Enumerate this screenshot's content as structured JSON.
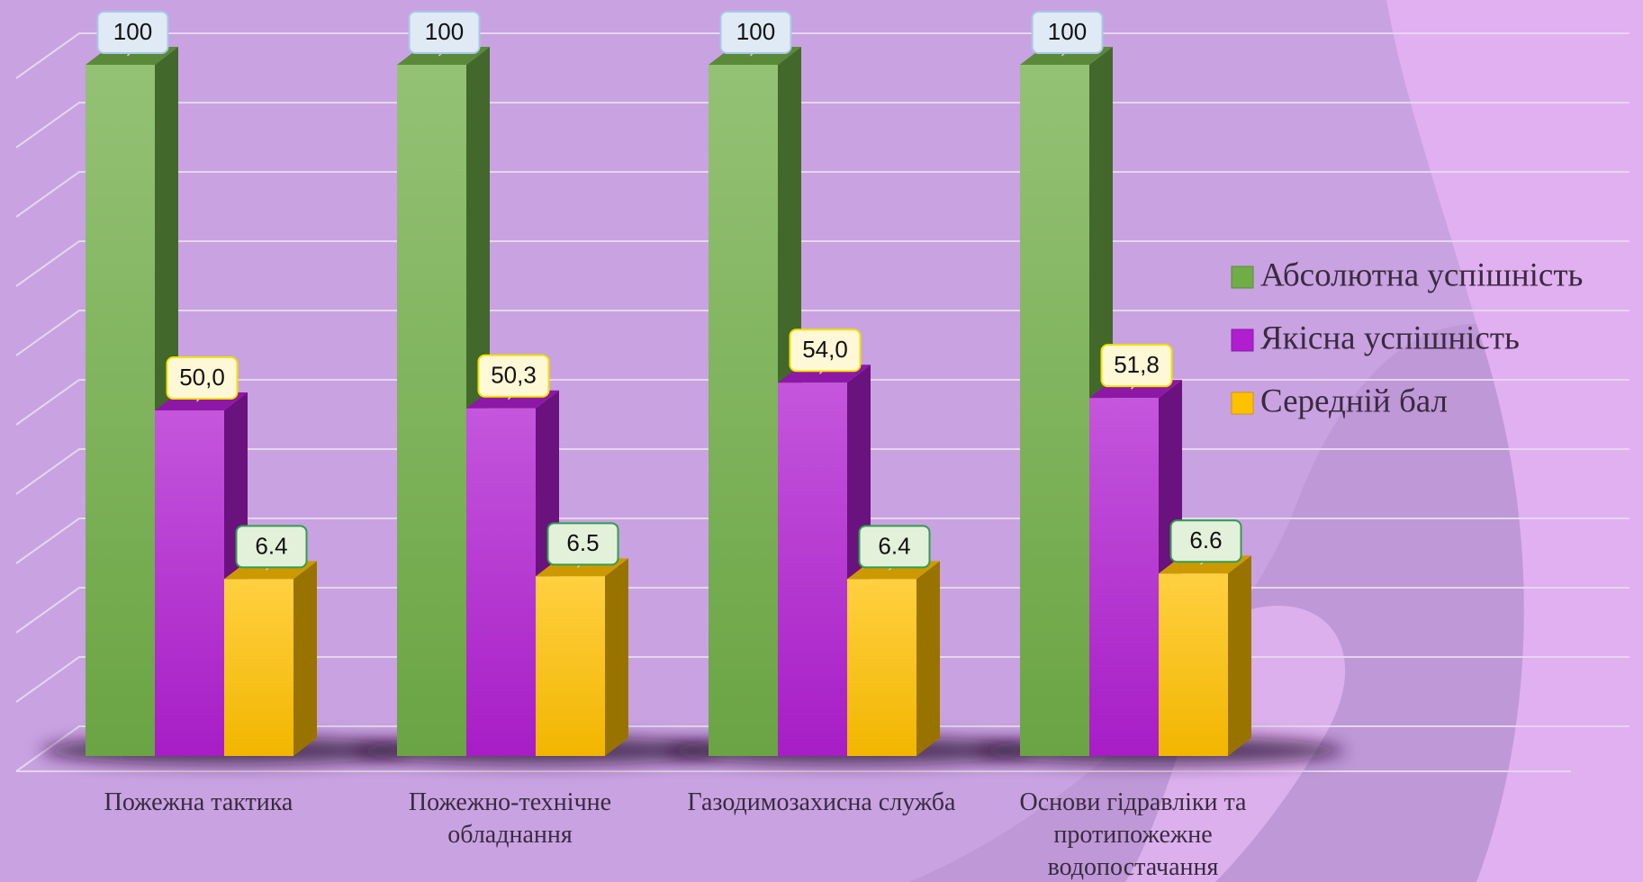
{
  "chart_data": {
    "type": "bar3d",
    "categories": [
      "Пожежна тактика",
      "Пожежно-технічне обладнання",
      "Газодимозахисна служба",
      "Основи гідравліки та протипожежне водопостачання"
    ],
    "series": [
      {
        "name": "Абсолютна успішність",
        "color": "#70ad47",
        "values": [
          100,
          100,
          100,
          100
        ]
      },
      {
        "name": "Якісна успішність",
        "color": "#b01ed0",
        "values": [
          50.0,
          50.3,
          54.0,
          51.8
        ],
        "value_labels": [
          "50,0",
          "50,3",
          "54,0",
          "51,8"
        ]
      },
      {
        "name": "Середній бал",
        "color": "#ffc000",
        "values": [
          6.4,
          6.5,
          6.4,
          6.6
        ],
        "axis": "y2"
      }
    ],
    "ylim": [
      0,
      100
    ],
    "yticks": [
      0,
      10,
      20,
      30,
      40,
      50,
      60,
      70,
      80,
      90,
      100
    ],
    "y2lim": [
      0,
      25
    ],
    "grid": true,
    "legend": "right"
  }
}
